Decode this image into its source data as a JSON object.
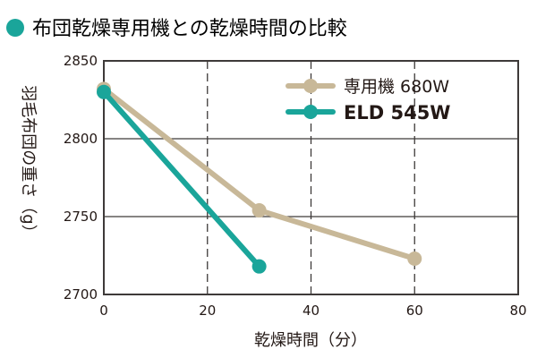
{
  "chart_data": {
    "type": "line",
    "title": "布団乾燥専用機との乾燥時間の比較",
    "xlabel": "乾燥時間（分）",
    "ylabel": "羽毛布団の重さ（g）",
    "xlim": [
      0,
      80
    ],
    "ylim": [
      2700,
      2850
    ],
    "xticks": [
      0,
      20,
      40,
      60,
      80
    ],
    "yticks": [
      2700,
      2750,
      2800,
      2850
    ],
    "grid": true,
    "legend_position": "top-right",
    "series": [
      {
        "name": "専用機 680W",
        "color": "#c8b898",
        "x": [
          0,
          30,
          60
        ],
        "y": [
          2832,
          2754,
          2723
        ],
        "bold": false
      },
      {
        "name": "ELD 545W",
        "color": "#1aa59a",
        "x": [
          0,
          30
        ],
        "y": [
          2830,
          2718
        ],
        "bold": true
      }
    ]
  },
  "title_bullet_color": "#1aa59a"
}
